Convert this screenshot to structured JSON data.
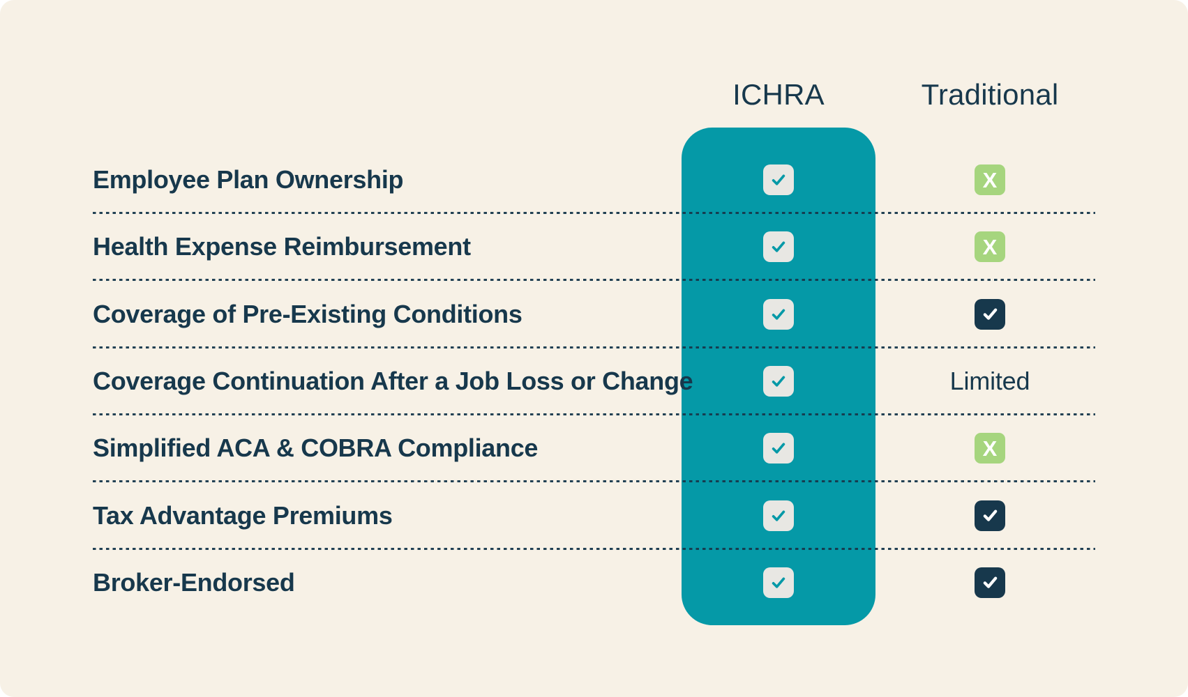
{
  "table": {
    "columns": [
      {
        "id": "ichra",
        "label": "ICHRA"
      },
      {
        "id": "traditional",
        "label": "Traditional"
      }
    ],
    "rows": [
      {
        "label": "Employee Plan Ownership",
        "ichra": "check",
        "traditional": "x"
      },
      {
        "label": "Health Expense Reimbursement",
        "ichra": "check",
        "traditional": "x"
      },
      {
        "label": "Coverage of Pre-Existing Conditions",
        "ichra": "check",
        "traditional": "check"
      },
      {
        "label": "Coverage Continuation After a Job Loss or Change",
        "ichra": "check",
        "traditional": "text",
        "traditional_text": "Limited"
      },
      {
        "label": "Simplified ACA & COBRA Compliance",
        "ichra": "check",
        "traditional": "x"
      },
      {
        "label": "Tax Advantage Premiums",
        "ichra": "check",
        "traditional": "check"
      },
      {
        "label": "Broker-Endorsed",
        "ichra": "check",
        "traditional": "check"
      }
    ],
    "x_glyph": "X"
  },
  "colors": {
    "teal": "#0599a7",
    "navy": "#17384c",
    "green": "#a6d57e",
    "cream": "#f7f1e6",
    "box-gray": "#e8e7e3",
    "white": "#ffffff"
  }
}
